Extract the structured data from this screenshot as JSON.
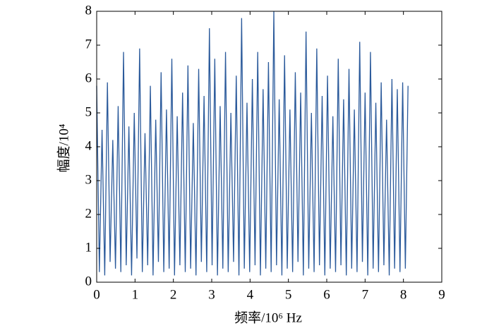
{
  "chart_data": {
    "type": "line",
    "xlabel": "频率/10⁶ Hz",
    "ylabel": "幅度/10⁴",
    "xlim": [
      0,
      9
    ],
    "ylim": [
      0,
      8
    ],
    "xticks": [
      0,
      1,
      2,
      3,
      4,
      5,
      6,
      7,
      8,
      9
    ],
    "yticks": [
      0,
      1,
      2,
      3,
      4,
      5,
      6,
      7,
      8
    ],
    "x": [
      0,
      0.07,
      0.14,
      0.21,
      0.28,
      0.35,
      0.42,
      0.49,
      0.56,
      0.63,
      0.7,
      0.77,
      0.84,
      0.91,
      0.98,
      1.05,
      1.12,
      1.19,
      1.26,
      1.33,
      1.4,
      1.47,
      1.54,
      1.61,
      1.68,
      1.75,
      1.82,
      1.89,
      1.96,
      2.03,
      2.1,
      2.17,
      2.24,
      2.31,
      2.38,
      2.45,
      2.52,
      2.59,
      2.66,
      2.73,
      2.8,
      2.87,
      2.94,
      3.01,
      3.08,
      3.15,
      3.22,
      3.29,
      3.36,
      3.43,
      3.5,
      3.57,
      3.64,
      3.71,
      3.78,
      3.85,
      3.92,
      3.99,
      4.06,
      4.13,
      4.2,
      4.27,
      4.34,
      4.41,
      4.48,
      4.55,
      4.62,
      4.69,
      4.76,
      4.83,
      4.9,
      4.97,
      5.04,
      5.11,
      5.18,
      5.25,
      5.32,
      5.39,
      5.46,
      5.53,
      5.6,
      5.67,
      5.74,
      5.81,
      5.88,
      5.95,
      6.02,
      6.09,
      6.16,
      6.23,
      6.3,
      6.37,
      6.44,
      6.51,
      6.58,
      6.65,
      6.72,
      6.79,
      6.86,
      6.93,
      7.0,
      7.07,
      7.14,
      7.21,
      7.28,
      7.35,
      7.42,
      7.49,
      7.56,
      7.63,
      7.7,
      7.77,
      7.84,
      7.91,
      7.98,
      8.05,
      8.12
    ],
    "series": [
      {
        "color": "#2b5a9b",
        "values": [
          5.8,
          0.3,
          4.5,
          0.2,
          5.9,
          0.6,
          4.2,
          0.4,
          5.2,
          0.3,
          6.8,
          0.5,
          4.6,
          0.2,
          5.0,
          0.7,
          6.9,
          0.3,
          4.4,
          0.5,
          5.8,
          0.2,
          4.8,
          0.6,
          6.2,
          0.3,
          5.1,
          0.4,
          6.6,
          0.2,
          4.9,
          0.5,
          5.6,
          0.3,
          6.4,
          0.4,
          4.7,
          0.2,
          6.3,
          0.6,
          5.5,
          0.3,
          7.5,
          0.5,
          6.6,
          0.2,
          5.2,
          0.4,
          6.8,
          0.3,
          5.0,
          0.6,
          6.1,
          0.2,
          7.8,
          0.4,
          5.3,
          0.3,
          6.0,
          0.5,
          6.8,
          0.2,
          5.7,
          0.4,
          6.5,
          0.3,
          8.0,
          0.5,
          5.4,
          0.2,
          6.7,
          0.4,
          5.1,
          0.3,
          6.2,
          0.6,
          5.6,
          0.2,
          7.4,
          0.4,
          5.0,
          0.3,
          6.9,
          0.5,
          5.5,
          0.2,
          6.1,
          0.4,
          4.9,
          0.3,
          6.6,
          0.5,
          5.4,
          0.2,
          6.3,
          0.4,
          5.1,
          0.3,
          7.1,
          0.6,
          5.6,
          0.2,
          6.8,
          0.4,
          5.3,
          0.3,
          5.9,
          0.5,
          4.8,
          0.2,
          6.0,
          0.4,
          5.7,
          0.3,
          5.9,
          0.4,
          5.8
        ]
      }
    ]
  }
}
